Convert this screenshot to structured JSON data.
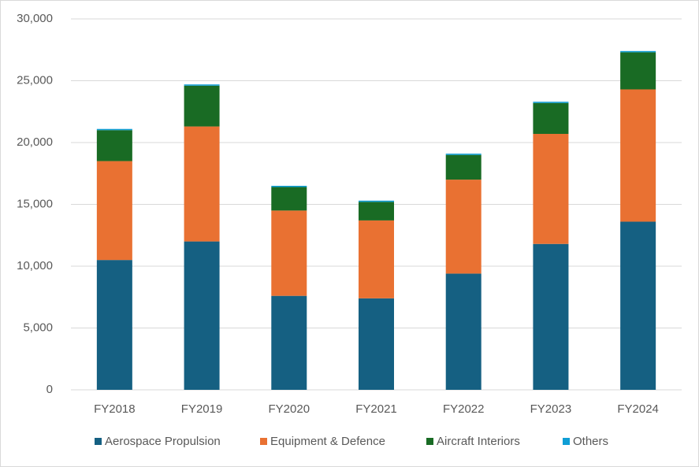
{
  "chart_data": {
    "type": "stacked-bar",
    "categories": [
      "FY2018",
      "FY2019",
      "FY2020",
      "FY2021",
      "FY2022",
      "FY2023",
      "FY2024"
    ],
    "series": [
      {
        "name": "Aerospace Propulsion",
        "color": "#156082",
        "values": [
          10500,
          12000,
          7600,
          7400,
          9400,
          11800,
          13600
        ]
      },
      {
        "name": "Equipment & Defence",
        "color": "#E97132",
        "values": [
          8000,
          9300,
          6900,
          6300,
          7600,
          8900,
          10700
        ]
      },
      {
        "name": "Aircraft Interiors",
        "color": "#196B24",
        "values": [
          2500,
          3300,
          1900,
          1500,
          2000,
          2500,
          3000
        ]
      },
      {
        "name": "Others",
        "color": "#0F9ED5",
        "values": [
          100,
          100,
          100,
          100,
          100,
          100,
          100
        ]
      }
    ],
    "ylim": [
      0,
      30000
    ],
    "yticks": [
      0,
      {
        "value": 5000,
        "label": "5,000"
      },
      {
        "value": 10000,
        "label": "10,000"
      },
      {
        "value": 15000,
        "label": "15,000"
      },
      {
        "value": 20000,
        "label": "20,000"
      },
      {
        "value": 25000,
        "label": "25,000"
      },
      {
        "value": 30000,
        "label": "30,000"
      }
    ],
    "grid": true,
    "legend": "bottom"
  }
}
